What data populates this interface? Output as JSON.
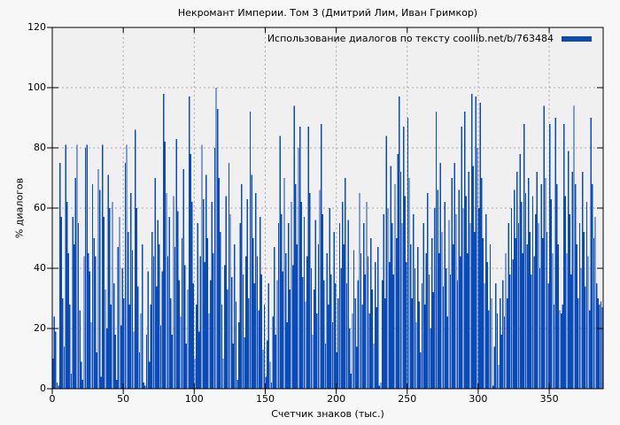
{
  "chart_data": {
    "type": "bar",
    "style": "impulses",
    "title": "Некромант Империи. Том 3 (Дмитрий Лим, Иван Гримкор)",
    "xlabel": "Счетчик знаков (тыс.)",
    "ylabel": "% диалогов",
    "legend": {
      "label": "Использование диалогов по тексту coollib.net/b/763484",
      "position": "top-right"
    },
    "xlim": [
      0,
      388
    ],
    "ylim": [
      0,
      120
    ],
    "xticks": [
      0,
      50,
      100,
      150,
      200,
      250,
      300,
      350
    ],
    "yticks": [
      0,
      20,
      40,
      60,
      80,
      100,
      120
    ],
    "grid": true,
    "x_start": 0,
    "x_step": 1,
    "colors": {
      "bar": "#0b4bb8",
      "plot_bg": "#f0f0f0",
      "outer_bg": "#f7f7f7",
      "grid": "#aaaaaa",
      "axis": "#000000"
    },
    "values": [
      10,
      24,
      19,
      2,
      1,
      75,
      57,
      30,
      14,
      81,
      62,
      45,
      28,
      5,
      57,
      48,
      70,
      81,
      55,
      26,
      9,
      3,
      44,
      80,
      81,
      45,
      39,
      22,
      68,
      50,
      44,
      12,
      73,
      66,
      4,
      81,
      57,
      33,
      20,
      71,
      60,
      28,
      62,
      35,
      18,
      3,
      47,
      57,
      21,
      40,
      30,
      75,
      81,
      52,
      28,
      65,
      46,
      19,
      86,
      60,
      34,
      12,
      25,
      48,
      2,
      1,
      18,
      39,
      9,
      28,
      52,
      44,
      70,
      34,
      56,
      48,
      21,
      39,
      98,
      82,
      65,
      44,
      57,
      30,
      18,
      64,
      47,
      83,
      59,
      36,
      24,
      50,
      73,
      41,
      15,
      33,
      97,
      78,
      62,
      35,
      10,
      28,
      55,
      19,
      44,
      81,
      63,
      42,
      71,
      50,
      25,
      36,
      62,
      45,
      80,
      100,
      93,
      70,
      52,
      28,
      10,
      41,
      64,
      33,
      75,
      58,
      37,
      15,
      48,
      29,
      3,
      22,
      55,
      68,
      38,
      17,
      44,
      63,
      30,
      92,
      71,
      50,
      35,
      65,
      44,
      26,
      57,
      38,
      13,
      28,
      4,
      16,
      35,
      9,
      2,
      24,
      47,
      18,
      36,
      55,
      84,
      58,
      39,
      70,
      45,
      22,
      55,
      33,
      62,
      41,
      94,
      68,
      48,
      80,
      87,
      62,
      37,
      57,
      29,
      44,
      87,
      65,
      40,
      18,
      33,
      56,
      25,
      48,
      66,
      88,
      58,
      36,
      15,
      45,
      28,
      60,
      38,
      22,
      52,
      35,
      12,
      30,
      55,
      40,
      62,
      48,
      70,
      35,
      56,
      20,
      5,
      25,
      46,
      30,
      14,
      36,
      65,
      45,
      28,
      55,
      38,
      62,
      44,
      25,
      50,
      33,
      15,
      42,
      27,
      47,
      1,
      2,
      36,
      58,
      30,
      84,
      60,
      42,
      74,
      55,
      38,
      68,
      50,
      78,
      97,
      72,
      55,
      87,
      64,
      42,
      90,
      70,
      48,
      30,
      58,
      40,
      22,
      47,
      29,
      12,
      35,
      55,
      28,
      45,
      65,
      38,
      20,
      50,
      32,
      60,
      92,
      66,
      45,
      75,
      52,
      34,
      62,
      40,
      24,
      56,
      38,
      70,
      48,
      75,
      58,
      36,
      66,
      44,
      87,
      60,
      92,
      64,
      45,
      72,
      55,
      98,
      74,
      52,
      97,
      80,
      60,
      95,
      70,
      50,
      35,
      58,
      42,
      26,
      48,
      30,
      1,
      14,
      35,
      25,
      8,
      30,
      18,
      36,
      24,
      45,
      30,
      55,
      38,
      60,
      43,
      66,
      50,
      72,
      55,
      78,
      62,
      45,
      88,
      65,
      48,
      70,
      52,
      38,
      64,
      44,
      58,
      72,
      55,
      40,
      68,
      50,
      94,
      70,
      52,
      35,
      88,
      63,
      45,
      28,
      90,
      68,
      48,
      26,
      25,
      28,
      88,
      64,
      45,
      79,
      58,
      38,
      72,
      94,
      68,
      48,
      30,
      55,
      40,
      72,
      52,
      34,
      62,
      44,
      26,
      90,
      68,
      50,
      57,
      35,
      30,
      28,
      29,
      27
    ]
  }
}
